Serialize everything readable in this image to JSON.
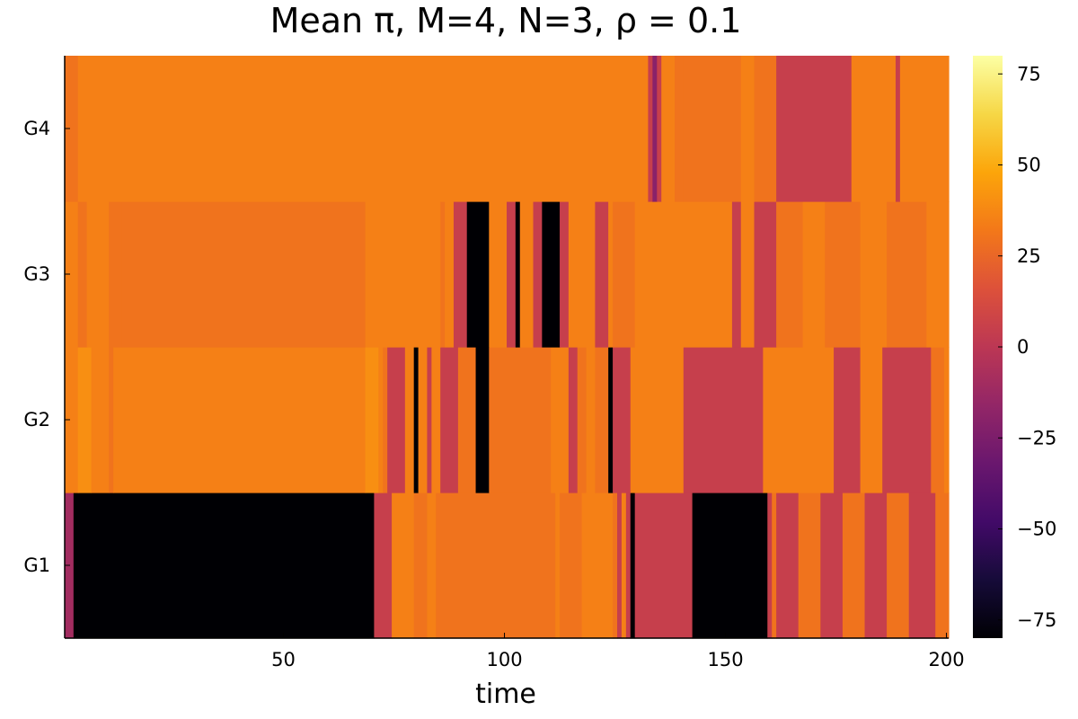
{
  "chart_data": {
    "type": "heatmap",
    "title": "Mean π, M=4, N=3, ρ = 0.1",
    "xlabel": "time",
    "ylabel": "",
    "xlim": [
      0.5,
      200.5
    ],
    "xticks": [
      50,
      100,
      150,
      200
    ],
    "rows": [
      "G1",
      "G2",
      "G3",
      "G4"
    ],
    "colormap": "inferno",
    "clim": [
      -80,
      80
    ],
    "colorbar_ticks": [
      -75,
      -50,
      -25,
      0,
      25,
      50,
      75
    ],
    "colorbar_tick_labels": [
      "−75",
      "−50",
      "−25",
      "0",
      "25",
      "50",
      "75"
    ],
    "grid": false,
    "note_values": "Each row is a list of [start_time, end_time, value] runs; values estimated from colorbar.",
    "values": {
      "G1": [
        [
          1,
          2,
          -10
        ],
        [
          3,
          70,
          -80
        ],
        [
          71,
          74,
          5
        ],
        [
          75,
          79,
          35
        ],
        [
          80,
          82,
          30
        ],
        [
          83,
          84,
          35
        ],
        [
          85,
          111,
          30
        ],
        [
          112,
          112,
          35
        ],
        [
          113,
          117,
          30
        ],
        [
          118,
          124,
          35
        ],
        [
          125,
          125,
          30
        ],
        [
          126,
          126,
          5
        ],
        [
          127,
          127,
          35
        ],
        [
          128,
          128,
          5
        ],
        [
          129,
          129,
          -80
        ],
        [
          130,
          142,
          5
        ],
        [
          143,
          159,
          -80
        ],
        [
          160,
          160,
          5
        ],
        [
          161,
          161,
          30
        ],
        [
          162,
          166,
          5
        ],
        [
          167,
          171,
          30
        ],
        [
          172,
          176,
          5
        ],
        [
          177,
          181,
          30
        ],
        [
          182,
          186,
          5
        ],
        [
          187,
          191,
          30
        ],
        [
          192,
          197,
          5
        ],
        [
          198,
          200,
          30
        ]
      ],
      "G2": [
        [
          1,
          3,
          35
        ],
        [
          4,
          6,
          40
        ],
        [
          7,
          10,
          35
        ],
        [
          11,
          11,
          30
        ],
        [
          12,
          68,
          35
        ],
        [
          69,
          71,
          40
        ],
        [
          72,
          72,
          35
        ],
        [
          73,
          73,
          30
        ],
        [
          74,
          77,
          5
        ],
        [
          78,
          79,
          35
        ],
        [
          80,
          80,
          -80
        ],
        [
          81,
          82,
          35
        ],
        [
          83,
          83,
          5
        ],
        [
          84,
          85,
          35
        ],
        [
          86,
          89,
          5
        ],
        [
          90,
          93,
          30
        ],
        [
          94,
          96,
          -80
        ],
        [
          97,
          110,
          30
        ],
        [
          111,
          114,
          35
        ],
        [
          115,
          116,
          5
        ],
        [
          117,
          118,
          30
        ],
        [
          119,
          120,
          35
        ],
        [
          121,
          123,
          30
        ],
        [
          124,
          124,
          -80
        ],
        [
          125,
          128,
          5
        ],
        [
          129,
          140,
          35
        ],
        [
          141,
          158,
          5
        ],
        [
          159,
          174,
          35
        ],
        [
          175,
          180,
          5
        ],
        [
          181,
          185,
          35
        ],
        [
          186,
          196,
          5
        ],
        [
          197,
          199,
          30
        ],
        [
          200,
          200,
          35
        ]
      ],
      "G3": [
        [
          1,
          3,
          35
        ],
        [
          4,
          5,
          30
        ],
        [
          6,
          10,
          35
        ],
        [
          11,
          13,
          30
        ],
        [
          14,
          68,
          30
        ],
        [
          69,
          85,
          35
        ],
        [
          86,
          86,
          30
        ],
        [
          87,
          88,
          35
        ],
        [
          89,
          91,
          5
        ],
        [
          92,
          96,
          -80
        ],
        [
          97,
          100,
          35
        ],
        [
          101,
          102,
          5
        ],
        [
          103,
          103,
          -80
        ],
        [
          104,
          106,
          35
        ],
        [
          107,
          108,
          5
        ],
        [
          109,
          112,
          -80
        ],
        [
          113,
          114,
          5
        ],
        [
          115,
          120,
          35
        ],
        [
          121,
          123,
          5
        ],
        [
          124,
          124,
          35
        ],
        [
          125,
          129,
          30
        ],
        [
          130,
          151,
          35
        ],
        [
          152,
          153,
          5
        ],
        [
          154,
          156,
          35
        ],
        [
          157,
          161,
          5
        ],
        [
          162,
          167,
          30
        ],
        [
          168,
          172,
          35
        ],
        [
          173,
          180,
          30
        ],
        [
          181,
          186,
          35
        ],
        [
          187,
          195,
          30
        ],
        [
          196,
          200,
          35
        ]
      ],
      "G4": [
        [
          1,
          3,
          30
        ],
        [
          4,
          132,
          35
        ],
        [
          133,
          133,
          5
        ],
        [
          134,
          134,
          -20
        ],
        [
          135,
          135,
          5
        ],
        [
          136,
          138,
          35
        ],
        [
          139,
          140,
          30
        ],
        [
          141,
          153,
          30
        ],
        [
          154,
          156,
          35
        ],
        [
          157,
          161,
          30
        ],
        [
          162,
          178,
          5
        ],
        [
          179,
          188,
          35
        ],
        [
          189,
          189,
          5
        ],
        [
          190,
          200,
          35
        ]
      ]
    }
  }
}
